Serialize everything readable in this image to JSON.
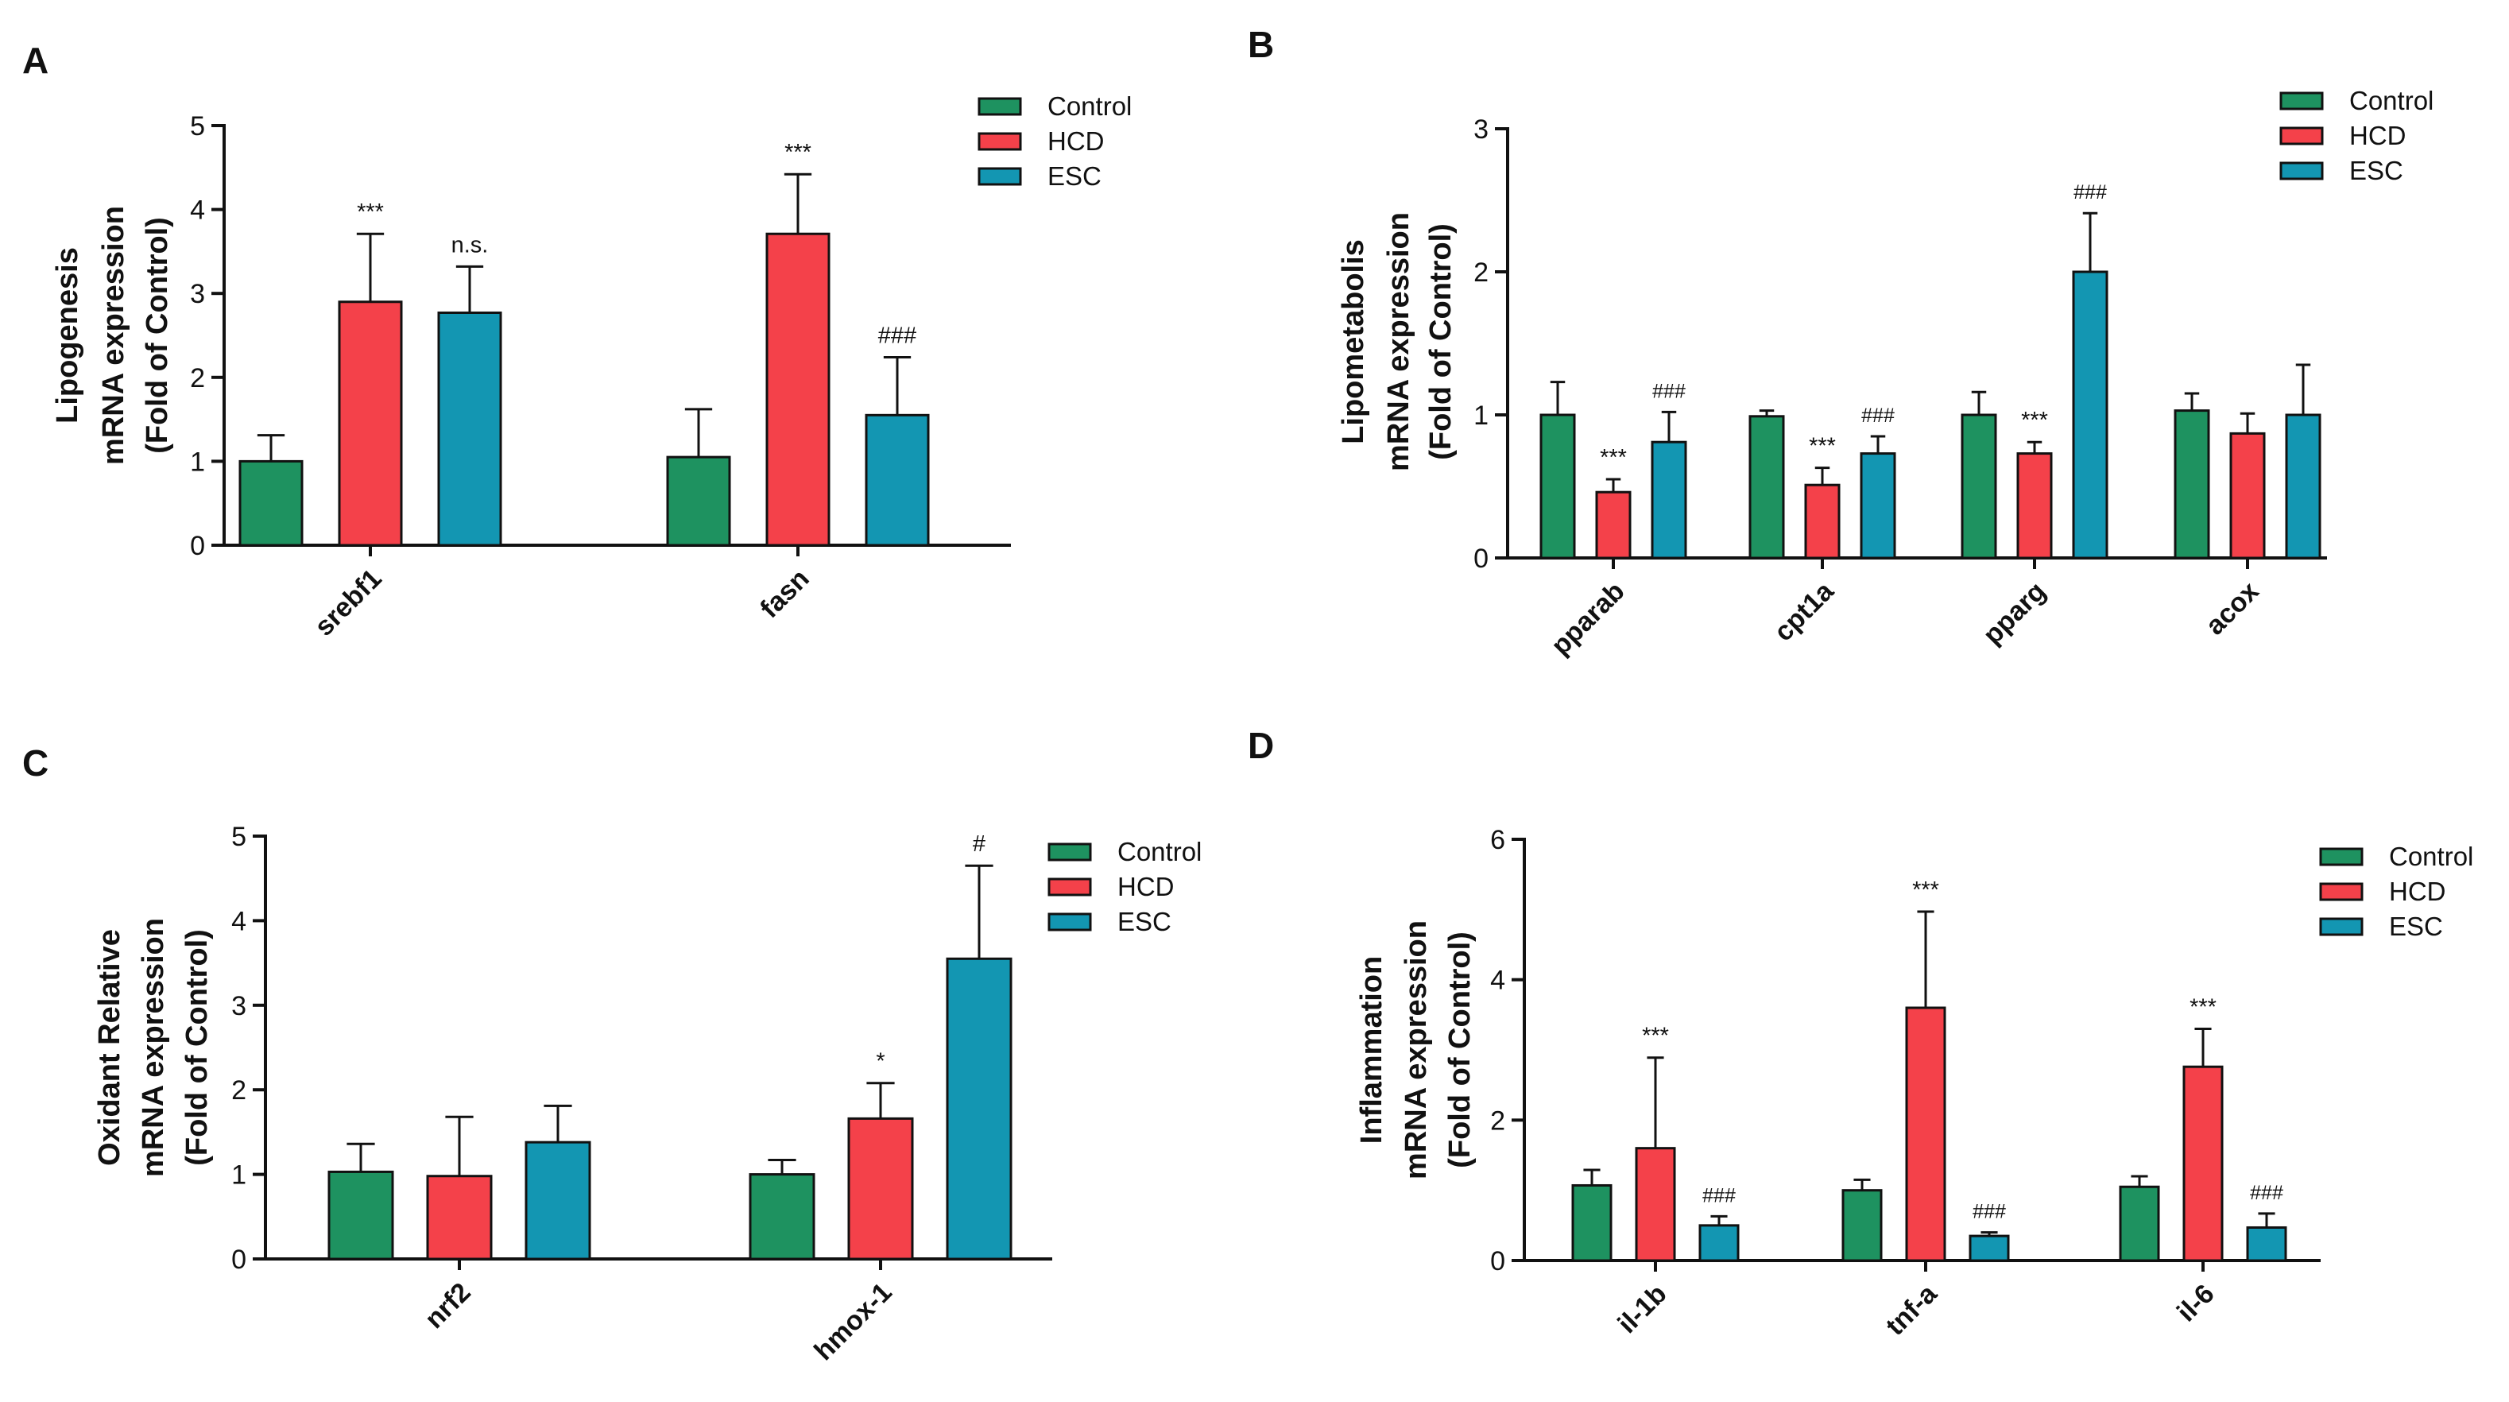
{
  "chart_data": [
    {
      "panel": "A",
      "type": "bar",
      "ylabel": [
        "Lipogenesis",
        "mRNA expression",
        "(Fold of Control)"
      ],
      "ylim": [
        0,
        5
      ],
      "yticks": [
        0,
        1,
        2,
        3,
        4,
        5
      ],
      "categories": [
        "srebf1",
        "fasn"
      ],
      "series": [
        {
          "name": "Control",
          "values": [
            1.0,
            1.05
          ],
          "errors": [
            0.31,
            0.57
          ]
        },
        {
          "name": "HCD",
          "values": [
            2.9,
            3.71
          ],
          "errors": [
            0.81,
            0.71
          ]
        },
        {
          "name": "ESC",
          "values": [
            2.77,
            1.55
          ],
          "errors": [
            0.55,
            0.69
          ]
        }
      ],
      "annotations": [
        {
          "category": 0,
          "series": 1,
          "text": "***"
        },
        {
          "category": 0,
          "series": 2,
          "text": "n.s."
        },
        {
          "category": 1,
          "series": 1,
          "text": "***"
        },
        {
          "category": 1,
          "series": 2,
          "text": "###"
        }
      ],
      "legend": [
        "Control",
        "HCD",
        "ESC"
      ]
    },
    {
      "panel": "B",
      "type": "bar",
      "ylabel": [
        "Lipometabolis",
        "mRNA expression",
        "(Fold of Control)"
      ],
      "ylim": [
        0,
        3
      ],
      "yticks": [
        0,
        1,
        2,
        3
      ],
      "categories": [
        "pparab",
        "cpt1a",
        "pparg",
        "acox"
      ],
      "series": [
        {
          "name": "Control",
          "values": [
            1.0,
            0.99,
            1.0,
            1.03
          ],
          "errors": [
            0.23,
            0.04,
            0.16,
            0.12
          ]
        },
        {
          "name": "HCD",
          "values": [
            0.46,
            0.51,
            0.73,
            0.87
          ],
          "errors": [
            0.09,
            0.12,
            0.08,
            0.14
          ]
        },
        {
          "name": "ESC",
          "values": [
            0.81,
            0.73,
            2.0,
            1.0
          ],
          "errors": [
            0.21,
            0.12,
            0.41,
            0.35
          ]
        }
      ],
      "annotations": [
        {
          "category": 0,
          "series": 1,
          "text": "***"
        },
        {
          "category": 0,
          "series": 2,
          "text": "###"
        },
        {
          "category": 1,
          "series": 1,
          "text": "***"
        },
        {
          "category": 1,
          "series": 2,
          "text": "###"
        },
        {
          "category": 2,
          "series": 1,
          "text": "***"
        },
        {
          "category": 2,
          "series": 2,
          "text": "###"
        }
      ],
      "legend": [
        "Control",
        "HCD",
        "ESC"
      ]
    },
    {
      "panel": "C",
      "type": "bar",
      "ylabel": [
        "Oxidant Relative",
        "mRNA expression",
        "(Fold of Control)"
      ],
      "ylim": [
        0,
        5
      ],
      "yticks": [
        0,
        1,
        2,
        3,
        4,
        5
      ],
      "categories": [
        "nrf2",
        "hmox-1"
      ],
      "series": [
        {
          "name": "Control",
          "values": [
            1.03,
            1.0
          ],
          "errors": [
            0.33,
            0.17
          ]
        },
        {
          "name": "HCD",
          "values": [
            0.98,
            1.66
          ],
          "errors": [
            0.7,
            0.42
          ]
        },
        {
          "name": "ESC",
          "values": [
            1.38,
            3.55
          ],
          "errors": [
            0.43,
            1.1
          ]
        }
      ],
      "annotations": [
        {
          "category": 1,
          "series": 1,
          "text": "*"
        },
        {
          "category": 1,
          "series": 2,
          "text": "#"
        }
      ],
      "legend": [
        "Control",
        "HCD",
        "ESC"
      ]
    },
    {
      "panel": "D",
      "type": "bar",
      "ylabel": [
        "Inflammation",
        "mRNA expression",
        "(Fold of Control)"
      ],
      "ylim": [
        0,
        6
      ],
      "yticks": [
        0,
        2,
        4,
        6
      ],
      "categories": [
        "il-1b",
        "tnf-a",
        "il-6"
      ],
      "series": [
        {
          "name": "Control",
          "values": [
            1.07,
            1.0,
            1.05
          ],
          "errors": [
            0.22,
            0.15,
            0.15
          ]
        },
        {
          "name": "HCD",
          "values": [
            1.6,
            3.6,
            2.76
          ],
          "errors": [
            1.29,
            1.37,
            0.54
          ]
        },
        {
          "name": "ESC",
          "values": [
            0.5,
            0.35,
            0.47
          ],
          "errors": [
            0.13,
            0.05,
            0.2
          ]
        }
      ],
      "annotations": [
        {
          "category": 0,
          "series": 1,
          "text": "***"
        },
        {
          "category": 0,
          "series": 2,
          "text": "###"
        },
        {
          "category": 1,
          "series": 1,
          "text": "***"
        },
        {
          "category": 1,
          "series": 2,
          "text": "###"
        },
        {
          "category": 2,
          "series": 1,
          "text": "***"
        },
        {
          "category": 2,
          "series": 2,
          "text": "###"
        }
      ],
      "legend": [
        "Control",
        "HCD",
        "ESC"
      ]
    }
  ],
  "colors": {
    "Control": "#1e9260",
    "HCD": "#f4414a",
    "ESC": "#1396b2",
    "axis": "#111111"
  }
}
